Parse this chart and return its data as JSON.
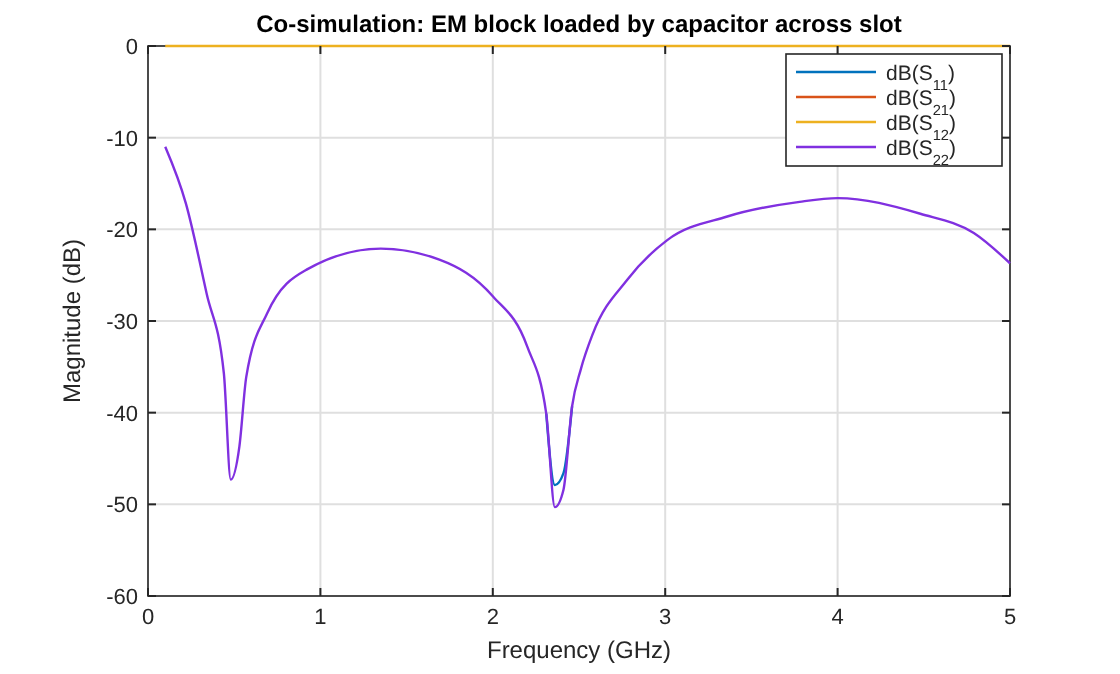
{
  "chart_data": {
    "type": "line",
    "title": "Co-simulation: EM block loaded by capacitor across slot",
    "xlabel": "Frequency (GHz)",
    "ylabel": "Magnitude (dB)",
    "xlim": [
      0,
      5
    ],
    "xticks": [
      0,
      1,
      2,
      3,
      4,
      5
    ],
    "ylim": [
      -60,
      0
    ],
    "yticks": [
      -60,
      -50,
      -40,
      -30,
      -20,
      -10,
      0
    ],
    "grid": true,
    "legend": "top right",
    "line_style": "solid",
    "marker": "none",
    "series": [
      {
        "name": "dB(S$_{11}$)",
        "color": "#0072bd",
        "x": [
          2.31,
          2.36,
          2.41,
          2.46
        ],
        "values": [
          -40.1,
          -47.9,
          -46.6,
          -39.3
        ]
      },
      {
        "name": "dB(S$_{21}$)",
        "color": "#d95319",
        "values": [
          null
        ]
      },
      {
        "name": "dB(S$_{12}$)",
        "color": "#edb120",
        "x": [
          0.1,
          5
        ],
        "values": [
          0,
          0
        ]
      },
      {
        "name": "dB(S$_{22}$)",
        "color": "#8030e0",
        "x": [
          0.1,
          0.22,
          0.34,
          0.44,
          0.48,
          0.53,
          0.57,
          0.69,
          0.92,
          1.35,
          1.69,
          2.0,
          2.2,
          2.31,
          2.36,
          2.41,
          2.46,
          2.51,
          2.58,
          2.78,
          3.01,
          3.36,
          3.78,
          4.0,
          4.48,
          4.79,
          5.0
        ],
        "values": [
          -11,
          -17.2,
          -27,
          -35.7,
          -47.3,
          -43.7,
          -36.1,
          -29.2,
          -24.4,
          -22.1,
          -23.3,
          -27.3,
          -32.8,
          -40.1,
          -50.3,
          -48.4,
          -39.3,
          -35.3,
          -31.4,
          -25.5,
          -21.2,
          -18.6,
          -17,
          -16.6,
          -18.3,
          -20.4,
          -23.7
        ]
      }
    ]
  }
}
